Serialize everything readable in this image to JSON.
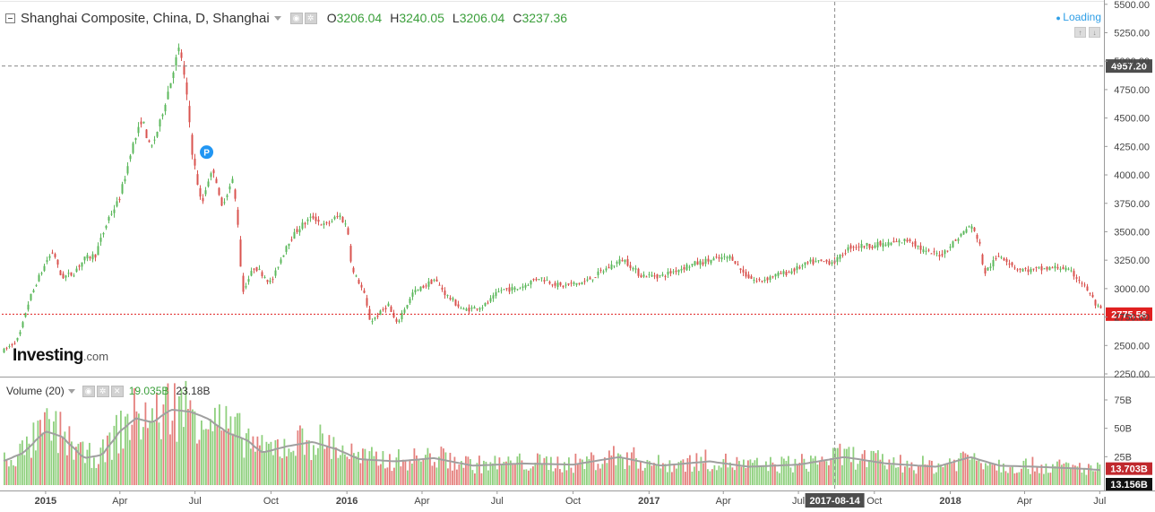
{
  "header": {
    "title": "Shanghai Composite, China, D, Shanghai",
    "open_label": "O",
    "open": "3206.04",
    "high_label": "H",
    "high": "3240.05",
    "low_label": "L",
    "low": "3206.04",
    "close_label": "C",
    "close": "3237.36"
  },
  "status": {
    "loading": "Loading"
  },
  "logo": {
    "name": "Investing",
    "suffix": ".com"
  },
  "volume_header": {
    "label": "Volume (20)",
    "value1": "19.035B",
    "value2": "23.18B"
  },
  "colors": {
    "up": "#5cb85c",
    "down": "#d9534f",
    "current_price": "#e02020",
    "text_value": "#3b9f3b",
    "volume_up": "#8fd07e",
    "volume_down": "#e4807d",
    "volume_ma": "#a0a0a0",
    "loading": "#2e9ee6"
  },
  "chart_data": [
    {
      "type": "candlestick",
      "title": "Shanghai Composite, China, D, Shanghai",
      "xlabel": "",
      "ylabel": "",
      "x_tick_labels": [
        "2015",
        "Apr",
        "Jul",
        "Oct",
        "2016",
        "Apr",
        "Jul",
        "Oct",
        "2017",
        "Apr",
        "Jul",
        "2017-08-14",
        "Oct",
        "2018",
        "Apr",
        "Jul"
      ],
      "y_tick_labels": [
        "2250.00",
        "2500.00",
        "2750.00",
        "3000.00",
        "3250.00",
        "3500.00",
        "3750.00",
        "4000.00",
        "4250.00",
        "4500.00",
        "4750.00",
        "5000.00",
        "5250.00",
        "5500.00"
      ],
      "ylim": [
        2250,
        5500
      ],
      "x_range": [
        "2014-11-10",
        "2018-07-05"
      ],
      "grid": false,
      "crosshair": {
        "date": "2017-08-14",
        "price_label": "4957.20",
        "price": 4957.2
      },
      "current_price": {
        "label": "2775.56",
        "value": 2775.56
      },
      "price_path": [
        [
          "2014-11-10",
          2450
        ],
        [
          "2014-11-28",
          2560
        ],
        [
          "2014-12-12",
          2920
        ],
        [
          "2014-12-31",
          3230
        ],
        [
          "2015-01-09",
          3330
        ],
        [
          "2015-01-19",
          3100
        ],
        [
          "2015-02-02",
          3130
        ],
        [
          "2015-02-16",
          3260
        ],
        [
          "2015-03-02",
          3300
        ],
        [
          "2015-03-16",
          3600
        ],
        [
          "2015-03-31",
          3800
        ],
        [
          "2015-04-13",
          4200
        ],
        [
          "2015-04-27",
          4500
        ],
        [
          "2015-05-07",
          4200
        ],
        [
          "2015-05-20",
          4500
        ],
        [
          "2015-06-01",
          4850
        ],
        [
          "2015-06-12",
          5150
        ],
        [
          "2015-06-19",
          4750
        ],
        [
          "2015-06-26",
          4250
        ],
        [
          "2015-07-08",
          3700
        ],
        [
          "2015-07-15",
          3950
        ],
        [
          "2015-07-24",
          4050
        ],
        [
          "2015-07-31",
          3700
        ],
        [
          "2015-08-14",
          3950
        ],
        [
          "2015-08-20",
          3700
        ],
        [
          "2015-08-26",
          2960
        ],
        [
          "2015-09-10",
          3200
        ],
        [
          "2015-09-30",
          3050
        ],
        [
          "2015-10-20",
          3400
        ],
        [
          "2015-11-05",
          3550
        ],
        [
          "2015-11-20",
          3630
        ],
        [
          "2015-12-04",
          3550
        ],
        [
          "2015-12-22",
          3650
        ],
        [
          "2015-12-31",
          3540
        ],
        [
          "2016-01-07",
          3150
        ],
        [
          "2016-01-20",
          2980
        ],
        [
          "2016-01-28",
          2700
        ],
        [
          "2016-02-19",
          2860
        ],
        [
          "2016-02-29",
          2690
        ],
        [
          "2016-03-20",
          2960
        ],
        [
          "2016-04-15",
          3080
        ],
        [
          "2016-04-30",
          2940
        ],
        [
          "2016-05-20",
          2810
        ],
        [
          "2016-06-15",
          2850
        ],
        [
          "2016-07-05",
          2990
        ],
        [
          "2016-07-25",
          3000
        ],
        [
          "2016-08-20",
          3100
        ],
        [
          "2016-09-15",
          3020
        ],
        [
          "2016-10-15",
          3060
        ],
        [
          "2016-11-15",
          3200
        ],
        [
          "2016-11-30",
          3260
        ],
        [
          "2016-12-20",
          3120
        ],
        [
          "2017-01-15",
          3110
        ],
        [
          "2017-02-15",
          3200
        ],
        [
          "2017-03-15",
          3250
        ],
        [
          "2017-04-10",
          3280
        ],
        [
          "2017-04-25",
          3130
        ],
        [
          "2017-05-11",
          3060
        ],
        [
          "2017-05-30",
          3110
        ],
        [
          "2017-06-20",
          3150
        ],
        [
          "2017-07-15",
          3230
        ],
        [
          "2017-08-14",
          3240
        ],
        [
          "2017-09-01",
          3370
        ],
        [
          "2017-10-15",
          3390
        ],
        [
          "2017-11-13",
          3430
        ],
        [
          "2017-11-30",
          3320
        ],
        [
          "2017-12-20",
          3300
        ],
        [
          "2018-01-10",
          3450
        ],
        [
          "2018-01-24",
          3560
        ],
        [
          "2018-02-05",
          3400
        ],
        [
          "2018-02-09",
          3130
        ],
        [
          "2018-03-01",
          3300
        ],
        [
          "2018-03-23",
          3170
        ],
        [
          "2018-04-10",
          3160
        ],
        [
          "2018-05-15",
          3190
        ],
        [
          "2018-06-01",
          3110
        ],
        [
          "2018-06-15",
          2990
        ],
        [
          "2018-06-25",
          2860
        ],
        [
          "2018-07-05",
          2775.56
        ]
      ],
      "highlighted_marker": {
        "date": "2015-07-15",
        "price": 4200,
        "label": "P"
      }
    },
    {
      "type": "bar",
      "title": "Volume (20)",
      "y_tick_labels": [
        "25B",
        "50B",
        "75B"
      ],
      "ylim": [
        0,
        90
      ],
      "current_labels": [
        "13.703B",
        "13.156B"
      ],
      "current_values": [
        13.703,
        13.156
      ],
      "volume_path": [
        [
          "2014-11-10",
          22
        ],
        [
          "2014-12-05",
          30
        ],
        [
          "2014-12-31",
          50
        ],
        [
          "2015-01-20",
          45
        ],
        [
          "2015-02-16",
          25
        ],
        [
          "2015-03-10",
          28
        ],
        [
          "2015-04-01",
          50
        ],
        [
          "2015-04-20",
          62
        ],
        [
          "2015-05-10",
          58
        ],
        [
          "2015-06-01",
          70
        ],
        [
          "2015-06-25",
          68
        ],
        [
          "2015-07-15",
          62
        ],
        [
          "2015-08-10",
          48
        ],
        [
          "2015-09-01",
          42
        ],
        [
          "2015-09-20",
          30
        ],
        [
          "2015-10-20",
          36
        ],
        [
          "2015-11-20",
          40
        ],
        [
          "2015-12-20",
          33
        ],
        [
          "2016-01-15",
          24
        ],
        [
          "2016-03-01",
          22
        ],
        [
          "2016-04-15",
          25
        ],
        [
          "2016-06-01",
          18
        ],
        [
          "2016-08-01",
          20
        ],
        [
          "2016-10-01",
          19
        ],
        [
          "2016-11-25",
          26
        ],
        [
          "2017-01-15",
          18
        ],
        [
          "2017-03-15",
          22
        ],
        [
          "2017-05-01",
          17
        ],
        [
          "2017-07-01",
          19
        ],
        [
          "2017-08-25",
          26
        ],
        [
          "2017-10-15",
          20
        ],
        [
          "2017-12-15",
          17
        ],
        [
          "2018-01-25",
          26
        ],
        [
          "2018-03-01",
          18
        ],
        [
          "2018-04-15",
          17
        ],
        [
          "2018-06-15",
          15
        ],
        [
          "2018-07-05",
          13.7
        ]
      ]
    }
  ]
}
